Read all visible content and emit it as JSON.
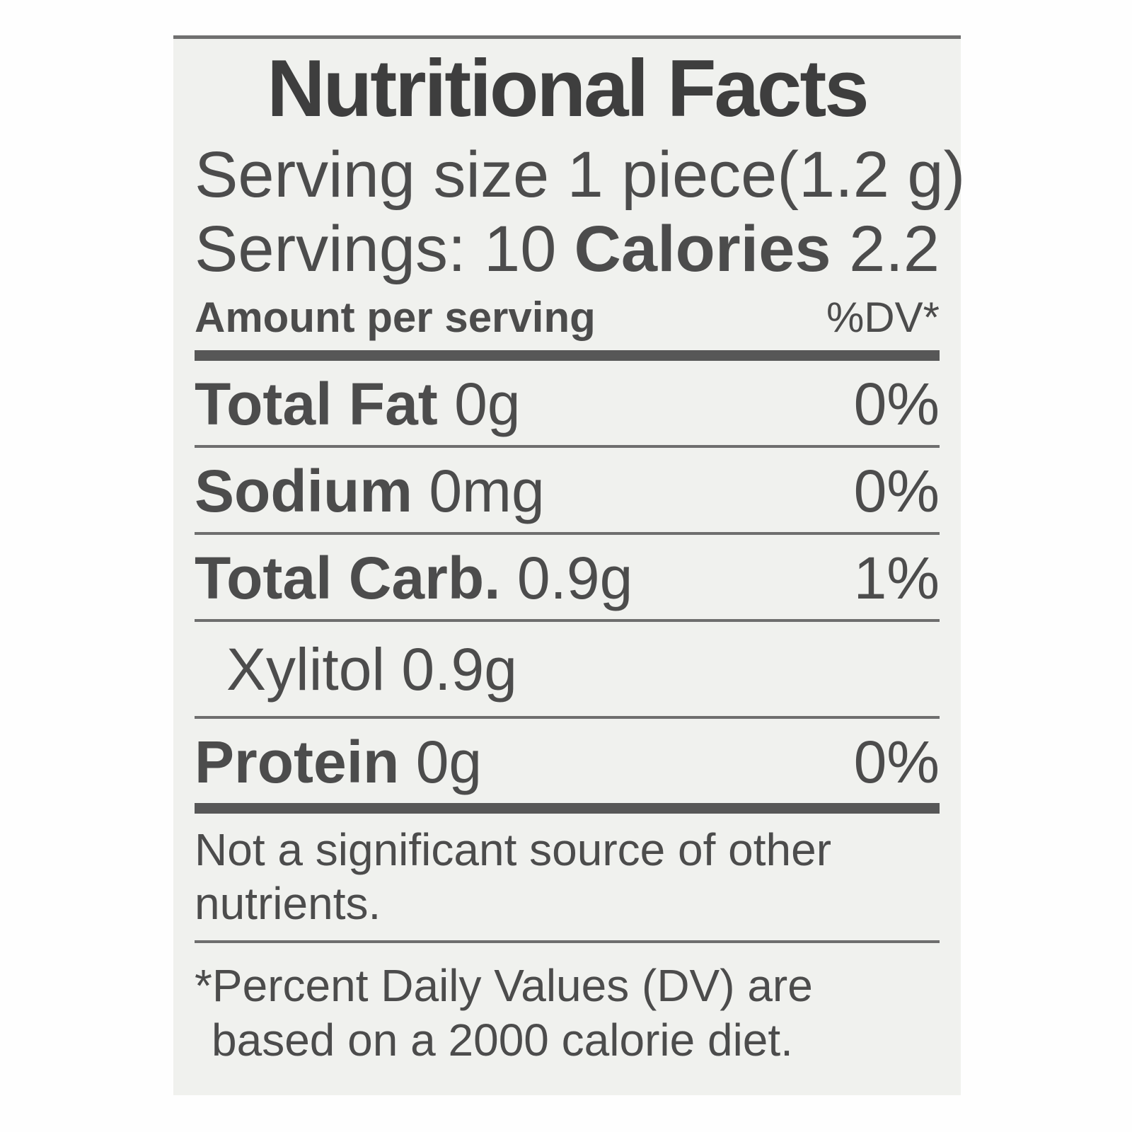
{
  "label": {
    "title": "Nutritional Facts",
    "serving": {
      "size_label": "Serving size 1 piece",
      "size_weight": "(1.2 g)",
      "servings_label": "Servings: 10",
      "calories_label": "Calories",
      "calories_value": "2.2"
    },
    "header": {
      "amount": "Amount per serving",
      "dv": "%DV*"
    },
    "rows": [
      {
        "name": "Total Fat",
        "amount": "0g",
        "dv": "0%"
      },
      {
        "name": "Sodium",
        "amount": "0mg",
        "dv": "0%"
      },
      {
        "name": "Total Carb.",
        "amount": "0.9g",
        "dv": "1%"
      },
      {
        "name": "Xylitol",
        "amount": "0.9g",
        "dv": ""
      },
      {
        "name": "Protein",
        "amount": "0g",
        "dv": "0%"
      }
    ],
    "note": {
      "line1": "Not a significant source of other",
      "line2": "nutrients."
    },
    "footnote": {
      "line1": "*Percent Daily Values (DV) are",
      "line2": "based on a 2000 calorie diet."
    }
  },
  "colors": {
    "label_background": "#f0f1ee",
    "text": "#4c4c4c",
    "rule": "#6e6e6e"
  }
}
